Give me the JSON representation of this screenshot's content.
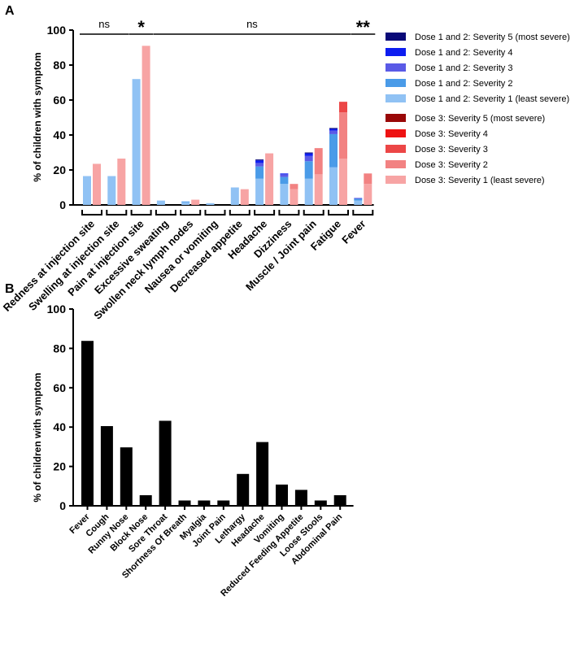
{
  "chart_data": [
    {
      "panel": "A",
      "type": "bar",
      "stacked": true,
      "ylabel": "% of children with symptom",
      "ylim": [
        0,
        100
      ],
      "yticks": [
        0,
        20,
        40,
        60,
        80,
        100
      ],
      "categories": [
        "Redness at injection site",
        "Swelling at injection site",
        "Pain at injection site",
        "Excessive sweating",
        "Swollen neck lymph nodes",
        "Nausea or vomiting",
        "Decreased appetite",
        "Headache",
        "Dizziness",
        "Muscle / Joint pain",
        "Fatigue",
        "Fever"
      ],
      "dose12_colors": [
        "#90c2f4",
        "#4a9be8",
        "#5a5ae6",
        "#0d1df0",
        "#0a0a78"
      ],
      "dose3_colors": [
        "#f7a4a4",
        "#f28282",
        "#ec4646",
        "#ee1212",
        "#990808"
      ],
      "dose12": [
        [
          16.5,
          0,
          0,
          0,
          0
        ],
        [
          16.5,
          0,
          0,
          0,
          0
        ],
        [
          72,
          0,
          0,
          0,
          0
        ],
        [
          2.5,
          0,
          0,
          0,
          0
        ],
        [
          1.5,
          0.5,
          0,
          0,
          0
        ],
        [
          1,
          0,
          0,
          0,
          0
        ],
        [
          10,
          0,
          0,
          0,
          0
        ],
        [
          15,
          7,
          2,
          1.5,
          0.5
        ],
        [
          12,
          4,
          1.5,
          0.5,
          0
        ],
        [
          15,
          10,
          3,
          1.5,
          0.5
        ],
        [
          21.5,
          19,
          2,
          1,
          0.5
        ],
        [
          2.5,
          1,
          0.5,
          0,
          0
        ]
      ],
      "dose3": [
        [
          23.5,
          0,
          0,
          0,
          0
        ],
        [
          26.5,
          0,
          0,
          0,
          0
        ],
        [
          91,
          0,
          0,
          0,
          0
        ],
        [
          0,
          0,
          0,
          0,
          0
        ],
        [
          3,
          0,
          0,
          0,
          0
        ],
        [
          0,
          0,
          0,
          0,
          0
        ],
        [
          9,
          0,
          0,
          0,
          0
        ],
        [
          29.5,
          0,
          0,
          0,
          0
        ],
        [
          9,
          3,
          0,
          0,
          0
        ],
        [
          17.5,
          15,
          0,
          0,
          0
        ],
        [
          26.5,
          26.5,
          6,
          0,
          0
        ],
        [
          12,
          6,
          0,
          0,
          0
        ]
      ],
      "significance": [
        {
          "label": "ns",
          "from": 0,
          "to": 1
        },
        {
          "label": "*",
          "from": 2,
          "to": 2
        },
        {
          "label": "ns",
          "from": 3,
          "to": 10
        },
        {
          "label": "**",
          "from": 11,
          "to": 11
        }
      ],
      "legend": [
        "Dose 1 and 2: Severity 5 (most severe)",
        "Dose 1 and 2: Severity 4",
        "Dose 1 and 2: Severity 3",
        "Dose 1 and 2: Severity 2",
        "Dose 1 and 2: Severity 1 (least severe)",
        "Dose 3: Severity 5 (most severe)",
        "Dose 3: Severity 4",
        "Dose 3: Severity 3",
        "Dose 3: Severity 2",
        "Dose 3: Severity 1 (least severe)"
      ]
    },
    {
      "panel": "B",
      "type": "bar",
      "ylabel": "% of children with symptom",
      "ylim": [
        0,
        100
      ],
      "yticks": [
        0,
        20,
        40,
        60,
        80,
        100
      ],
      "bar_color": "#000000",
      "categories": [
        "Fever",
        "Cough",
        "Runny Nose",
        "Block Nose",
        "Sore Throat",
        "Shortness Of Breath",
        "Myalgia",
        "Joint Pain",
        "Lethargy",
        "Headache",
        "Vomiting",
        "Reduced Feeding Appetite",
        "Loose Stools",
        "Abdominal Pain"
      ],
      "values": [
        83.8,
        40.5,
        29.7,
        5.4,
        43.2,
        2.7,
        2.7,
        2.7,
        16.2,
        32.4,
        10.8,
        8.1,
        2.7,
        5.4
      ]
    }
  ]
}
